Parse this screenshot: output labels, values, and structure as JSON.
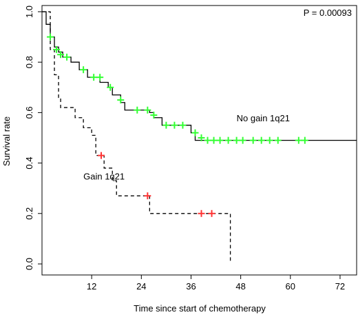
{
  "chart_data": {
    "type": "line",
    "title": "",
    "xlabel": "Time since start of chemotherapy",
    "ylabel": "Survival rate",
    "xlim": [
      0,
      76
    ],
    "ylim": [
      0,
      1.0
    ],
    "x_ticks": [
      12,
      24,
      36,
      48,
      60,
      72
    ],
    "x_tick_labels": [
      "12",
      "24",
      "36",
      "48",
      "60",
      "72"
    ],
    "y_ticks": [
      0.0,
      0.2,
      0.4,
      0.6,
      0.8,
      1.0
    ],
    "y_tick_labels": [
      "0.0",
      "0.2",
      "0.4",
      "0.6",
      "0.8",
      "1.0"
    ],
    "grid": false,
    "p_value_label": "P = 0.00093",
    "series": [
      {
        "name": "No gain 1q21",
        "color": "#000000",
        "dash": "solid",
        "censor_color": "#33ff33",
        "steps": [
          [
            0,
            1.0
          ],
          [
            1,
            0.95
          ],
          [
            2,
            0.9
          ],
          [
            3,
            0.86
          ],
          [
            4,
            0.84
          ],
          [
            5,
            0.82
          ],
          [
            7,
            0.8
          ],
          [
            9,
            0.77
          ],
          [
            11,
            0.74
          ],
          [
            14,
            0.72
          ],
          [
            16,
            0.7
          ],
          [
            17,
            0.67
          ],
          [
            19,
            0.64
          ],
          [
            20,
            0.61
          ],
          [
            24,
            0.61
          ],
          [
            26,
            0.6
          ],
          [
            27,
            0.58
          ],
          [
            29,
            0.55
          ],
          [
            33,
            0.55
          ],
          [
            36,
            0.52
          ],
          [
            37,
            0.49
          ],
          [
            76,
            0.49
          ]
        ],
        "censored": [
          [
            2,
            0.9
          ],
          [
            3.5,
            0.85
          ],
          [
            4.5,
            0.83
          ],
          [
            6,
            0.82
          ],
          [
            10,
            0.77
          ],
          [
            12.5,
            0.74
          ],
          [
            14,
            0.74
          ],
          [
            16.5,
            0.7
          ],
          [
            19,
            0.65
          ],
          [
            23,
            0.61
          ],
          [
            25.5,
            0.61
          ],
          [
            27,
            0.59
          ],
          [
            30,
            0.55
          ],
          [
            32,
            0.55
          ],
          [
            34,
            0.55
          ],
          [
            37,
            0.52
          ],
          [
            38.5,
            0.5
          ],
          [
            40,
            0.49
          ],
          [
            41.5,
            0.49
          ],
          [
            43,
            0.49
          ],
          [
            45,
            0.49
          ],
          [
            47,
            0.49
          ],
          [
            48.5,
            0.49
          ],
          [
            51,
            0.49
          ],
          [
            53,
            0.49
          ],
          [
            55,
            0.49
          ],
          [
            57,
            0.49
          ],
          [
            62,
            0.49
          ],
          [
            63.5,
            0.49
          ]
        ]
      },
      {
        "name": "Gain 1q21",
        "color": "#000000",
        "dash": "dashed",
        "censor_color": "#ff3333",
        "steps": [
          [
            0,
            1.0
          ],
          [
            2,
            0.85
          ],
          [
            3,
            0.75
          ],
          [
            4,
            0.66
          ],
          [
            4.5,
            0.62
          ],
          [
            8,
            0.58
          ],
          [
            10,
            0.54
          ],
          [
            12,
            0.51
          ],
          [
            13,
            0.43
          ],
          [
            15,
            0.38
          ],
          [
            17,
            0.33
          ],
          [
            18,
            0.27
          ],
          [
            26,
            0.2
          ],
          [
            45.5,
            0.01
          ]
        ],
        "censored": [
          [
            14.3,
            0.43
          ],
          [
            25.5,
            0.27
          ],
          [
            38.5,
            0.2
          ],
          [
            41,
            0.2
          ]
        ]
      }
    ],
    "annotations": [
      {
        "text": "No gain 1q21",
        "x": 47,
        "y": 0.565
      },
      {
        "text": "Gain 1q21",
        "x": 10,
        "y": 0.335
      }
    ]
  }
}
